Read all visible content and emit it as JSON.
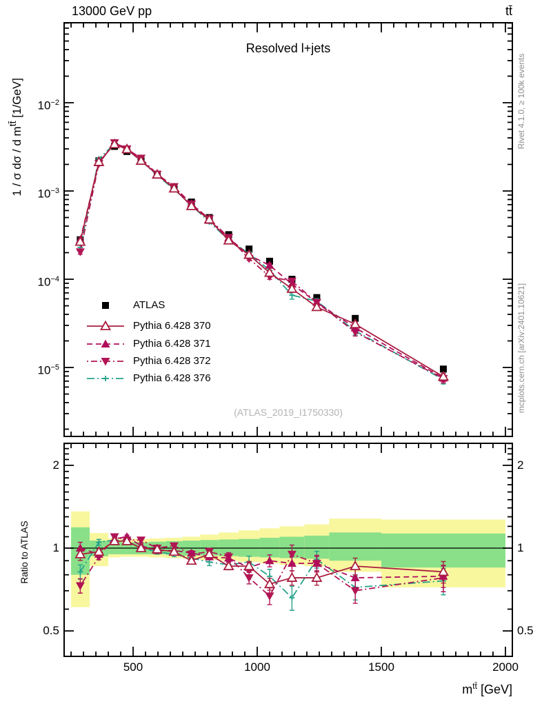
{
  "header": {
    "left": "13000 GeV pp",
    "right": "tt̄"
  },
  "panel": {
    "watermark": "(ATLAS_2019_I1750330)"
  },
  "labels": {
    "y_prefix": "1 / σ dσ / d m",
    "y_sup": "tt̄",
    "y_suffix": " [1/GeV]",
    "x_base": "m",
    "x_sup": "tt̄",
    "x_suffix": " [GeV]",
    "ratio_y": "Ratio to ATLAS"
  },
  "side_notes": {
    "top": "Rivet 4.1.0, ≥ 100k events",
    "bottom": "mcplots.cern.ch [arXiv:2401.10621]"
  },
  "axis_ticks": {
    "x": [
      "500",
      "1000",
      "1500",
      "2000"
    ],
    "y_base": "10",
    "y_exps": [
      "−2",
      "−3",
      "−4",
      "−5"
    ],
    "ratio": [
      "2",
      "1",
      "0.5"
    ]
  },
  "chart_data": {
    "type": "line",
    "title": "Resolved l+jets",
    "xlabel": "m^tt [GeV]",
    "ylabel": "1 / σ dσ / d m^tt [1/GeV]",
    "ratio_ylabel": "Ratio to ATLAS",
    "x_range": [
      222,
      2028
    ],
    "y_range": [
      1.7e-06,
      0.08
    ],
    "ratio_range": [
      0.41,
      2.4
    ],
    "x_ticks": [
      500,
      1000,
      1500,
      2000
    ],
    "y_tick_exps": [
      -2,
      -3,
      -4,
      -5
    ],
    "ratio_ticks": [
      0.5,
      1,
      2
    ],
    "bin_edges": [
      250,
      325,
      400,
      450,
      500,
      565,
      630,
      700,
      770,
      845,
      925,
      1010,
      1090,
      1190,
      1290,
      1500,
      2000
    ],
    "bin_centers": [
      287,
      362,
      425,
      475,
      532,
      597,
      665,
      735,
      807,
      885,
      967,
      1050,
      1140,
      1240,
      1395,
      1750
    ],
    "reference": {
      "name": "ATLAS",
      "marker": "square",
      "color": "#000000",
      "values": [
        0.00028,
        0.0022,
        0.0032,
        0.0028,
        0.0022,
        0.00155,
        0.0011,
        0.00075,
        0.0005,
        0.00032,
        0.00022,
        0.00016,
        0.0001,
        6.2e-05,
        3.6e-05,
        9.6e-06
      ],
      "err_rel": [
        0.04,
        0.015,
        0.01,
        0.01,
        0.01,
        0.01,
        0.012,
        0.015,
        0.018,
        0.02,
        0.025,
        0.03,
        0.035,
        0.04,
        0.05,
        0.06
      ]
    },
    "series": [
      {
        "name": "Pythia 6.428 370",
        "color": "#a91e40",
        "line": "solid",
        "marker": "triangle-open",
        "ratio": [
          0.95,
          0.97,
          1.06,
          1.06,
          1.0,
          0.99,
          0.97,
          0.9,
          0.95,
          0.86,
          0.86,
          0.74,
          0.78,
          0.78,
          0.86,
          0.82
        ],
        "err_rel": [
          0.05,
          0.02,
          0.015,
          0.015,
          0.015,
          0.015,
          0.018,
          0.02,
          0.025,
          0.03,
          0.04,
          0.05,
          0.06,
          0.06,
          0.07,
          0.09
        ]
      },
      {
        "name": "Pythia 6.428 371",
        "color": "#b00d5b",
        "line": "dash",
        "marker": "triangle-up",
        "ratio": [
          1.0,
          0.95,
          1.08,
          1.1,
          1.02,
          0.98,
          0.98,
          0.96,
          0.93,
          0.92,
          0.85,
          0.9,
          0.88,
          0.88,
          0.78,
          0.79
        ],
        "err_rel": [
          0.05,
          0.02,
          0.015,
          0.015,
          0.015,
          0.015,
          0.018,
          0.02,
          0.025,
          0.03,
          0.04,
          0.05,
          0.06,
          0.06,
          0.08,
          0.09
        ]
      },
      {
        "name": "Pythia 6.428 372",
        "color": "#b11554",
        "line": "dashdot",
        "marker": "triangle-down",
        "ratio": [
          0.73,
          0.93,
          1.1,
          1.07,
          1.07,
          1.0,
          1.02,
          0.95,
          0.97,
          0.93,
          0.78,
          0.67,
          0.95,
          0.88,
          0.7,
          0.78
        ],
        "err_rel": [
          0.06,
          0.025,
          0.02,
          0.02,
          0.02,
          0.02,
          0.02,
          0.025,
          0.03,
          0.035,
          0.05,
          0.07,
          0.08,
          0.07,
          0.1,
          0.11
        ]
      },
      {
        "name": "Pythia 6.428 376",
        "color": "#26a28a",
        "line": "dashdotdot",
        "marker": "plus",
        "ratio": [
          0.82,
          1.05,
          1.07,
          1.06,
          1.0,
          0.97,
          0.95,
          0.92,
          0.89,
          0.87,
          0.89,
          0.79,
          0.66,
          0.91,
          0.72,
          0.76
        ],
        "err_rel": [
          0.06,
          0.025,
          0.02,
          0.02,
          0.02,
          0.02,
          0.02,
          0.025,
          0.03,
          0.035,
          0.05,
          0.06,
          0.1,
          0.07,
          0.1,
          0.11
        ]
      }
    ],
    "bands": {
      "green": "#89e089",
      "yellow": "#f8f79e",
      "per_bin": [
        [
          0.8,
          1.19,
          0.61,
          1.36
        ],
        [
          0.935,
          1.065,
          0.86,
          1.135
        ],
        [
          0.95,
          1.055,
          0.925,
          1.085
        ],
        [
          0.95,
          1.05,
          0.93,
          1.08
        ],
        [
          0.95,
          1.05,
          0.93,
          1.08
        ],
        [
          0.95,
          1.055,
          0.925,
          1.085
        ],
        [
          0.945,
          1.06,
          0.92,
          1.09
        ],
        [
          0.94,
          1.065,
          0.915,
          1.1
        ],
        [
          0.94,
          1.07,
          0.905,
          1.12
        ],
        [
          0.935,
          1.075,
          0.9,
          1.14
        ],
        [
          0.93,
          1.08,
          0.89,
          1.16
        ],
        [
          0.925,
          1.09,
          0.88,
          1.18
        ],
        [
          0.92,
          1.1,
          0.87,
          1.2
        ],
        [
          0.915,
          1.11,
          0.86,
          1.22
        ],
        [
          0.9,
          1.14,
          0.82,
          1.28
        ],
        [
          0.85,
          1.13,
          0.72,
          1.27
        ]
      ]
    },
    "legend_position": "middle-left",
    "grid": false
  }
}
